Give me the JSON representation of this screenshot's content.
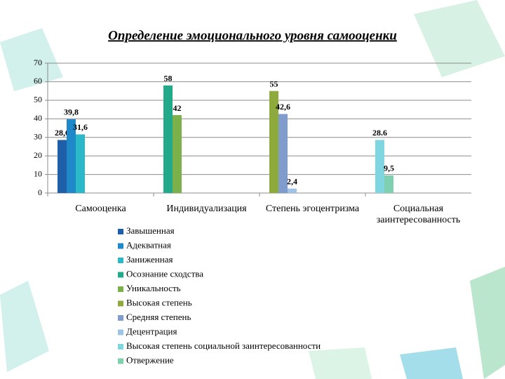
{
  "chart_data": {
    "type": "bar",
    "title": "Определение эмоционального уровня самооценки",
    "categories": [
      "Самооценка",
      "Индивидуализация",
      "Степень эгоцентризма",
      "Социальная заинтересованность"
    ],
    "series": [
      {
        "name": "Завышенная",
        "color": "#1f5fa8",
        "values": [
          28.6,
          null,
          null,
          null
        ],
        "value_labels": [
          "28,6",
          null,
          null,
          null
        ]
      },
      {
        "name": "Адекватная",
        "color": "#1e88c8",
        "values": [
          39.8,
          null,
          null,
          null
        ],
        "value_labels": [
          "39,8",
          null,
          null,
          null
        ]
      },
      {
        "name": "Заниженная",
        "color": "#2bb8c8",
        "values": [
          31.6,
          null,
          null,
          null
        ],
        "value_labels": [
          "31,6",
          null,
          null,
          null
        ]
      },
      {
        "name": "Осознание сходства",
        "color": "#21a98a",
        "values": [
          null,
          58,
          null,
          null
        ]
      },
      {
        "name": "Уникальность",
        "color": "#7cb04a",
        "values": [
          null,
          42,
          null,
          null
        ]
      },
      {
        "name": "Высокая степень",
        "color": "#8faa3c",
        "values": [
          null,
          null,
          55,
          null
        ]
      },
      {
        "name": "Средняя степень",
        "color": "#7f9ccc",
        "values": [
          null,
          null,
          42.6,
          null
        ],
        "value_labels": [
          null,
          null,
          "42,6",
          null
        ]
      },
      {
        "name": "Децентрация",
        "color": "#9ec3e4",
        "values": [
          null,
          null,
          2.4,
          null
        ],
        "value_labels": [
          null,
          null,
          "2,4",
          null
        ]
      },
      {
        "name": "Высокая степень социальной заинтересованности",
        "color": "#7fd6e0",
        "values": [
          null,
          null,
          null,
          28.6
        ],
        "value_labels": [
          null,
          null,
          null,
          "28.6"
        ]
      },
      {
        "name": "Отвержение",
        "color": "#7fd0b0",
        "values": [
          null,
          null,
          null,
          9.5
        ],
        "value_labels": [
          null,
          null,
          null,
          "9,5"
        ]
      }
    ],
    "ylim": [
      0,
      70
    ],
    "yticks": [
      0,
      10,
      20,
      30,
      40,
      50,
      60,
      70
    ],
    "grid": true
  }
}
